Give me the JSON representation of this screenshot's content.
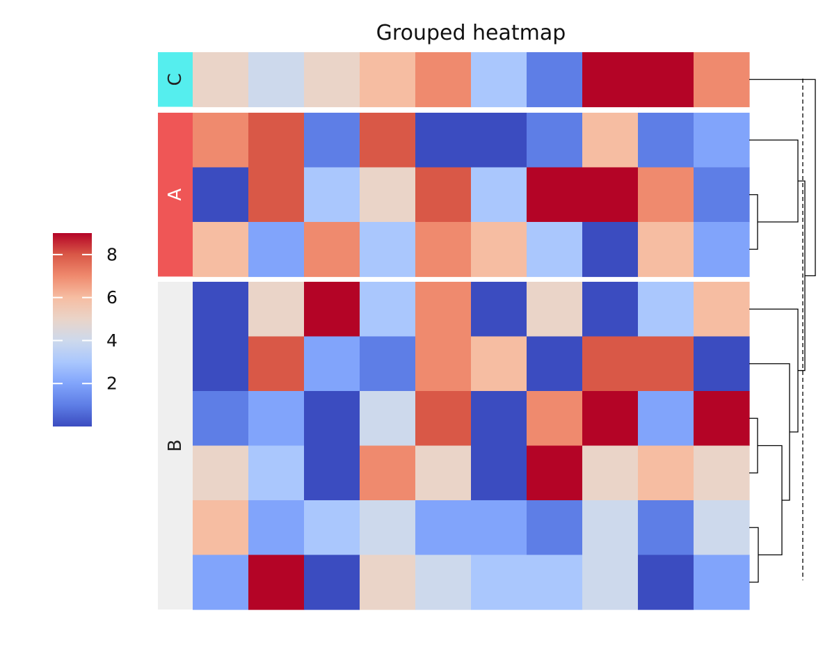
{
  "chart_data": {
    "type": "heatmap",
    "title": "Grouped heatmap",
    "colormap": "coolwarm",
    "color_stops": [
      "#3b4cc0",
      "#5e7ee6",
      "#81a4fb",
      "#aac7fd",
      "#cdd9ec",
      "#ead4c8",
      "#f6bda2",
      "#ef8a6e",
      "#d95847",
      "#b40426"
    ],
    "colorbar": {
      "ticks": [
        2,
        4,
        6,
        8
      ],
      "range": [
        0,
        9
      ]
    },
    "groups": [
      {
        "name": "C",
        "color": "#55eeee",
        "label_color": "#222222",
        "rows": [
          0
        ]
      },
      {
        "name": "A",
        "color": "#ef5656",
        "label_color": "#ffffff",
        "rows": [
          1,
          2,
          3
        ]
      },
      {
        "name": "B",
        "color": "#efefef",
        "label_color": "#222222",
        "rows": [
          4,
          5,
          6,
          7,
          8,
          9
        ]
      }
    ],
    "values": [
      [
        5,
        4,
        5,
        6,
        7,
        3,
        1,
        9,
        9,
        7
      ],
      [
        7,
        8,
        1,
        8,
        0,
        0,
        1,
        6,
        1,
        2
      ],
      [
        0,
        8,
        3,
        5,
        8,
        3,
        9,
        9,
        7,
        1
      ],
      [
        6,
        2,
        7,
        3,
        7,
        6,
        3,
        0,
        6,
        2
      ],
      [
        0,
        5,
        9,
        3,
        7,
        0,
        5,
        0,
        3,
        6
      ],
      [
        0,
        8,
        2,
        1,
        7,
        6,
        0,
        8,
        8,
        0
      ],
      [
        1,
        2,
        0,
        4,
        8,
        0,
        7,
        9,
        2,
        9
      ],
      [
        5,
        3,
        0,
        7,
        5,
        0,
        9,
        5,
        6,
        5
      ],
      [
        6,
        2,
        3,
        4,
        2,
        2,
        1,
        4,
        1,
        4
      ],
      [
        2,
        9,
        0,
        5,
        4,
        3,
        3,
        4,
        0,
        2
      ]
    ],
    "dendrogram": "rows"
  }
}
